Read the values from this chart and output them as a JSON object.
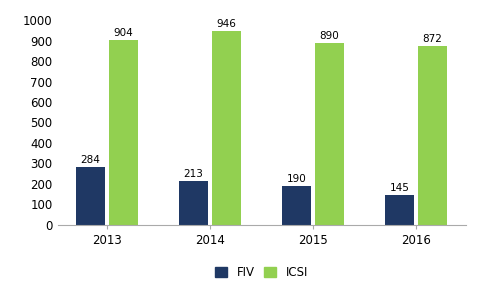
{
  "years": [
    "2013",
    "2014",
    "2015",
    "2016"
  ],
  "fiv_values": [
    284,
    213,
    190,
    145
  ],
  "icsi_values": [
    904,
    946,
    890,
    872
  ],
  "fiv_color": "#1F3864",
  "icsi_color": "#92D050",
  "ylim": [
    0,
    1000
  ],
  "yticks": [
    0,
    100,
    200,
    300,
    400,
    500,
    600,
    700,
    800,
    900,
    1000
  ],
  "legend_fiv": "FIV",
  "legend_icsi": "ICSI",
  "bar_width": 0.28,
  "label_fontsize": 7.5,
  "tick_fontsize": 8.5,
  "legend_fontsize": 8.5,
  "background_color": "#ffffff"
}
